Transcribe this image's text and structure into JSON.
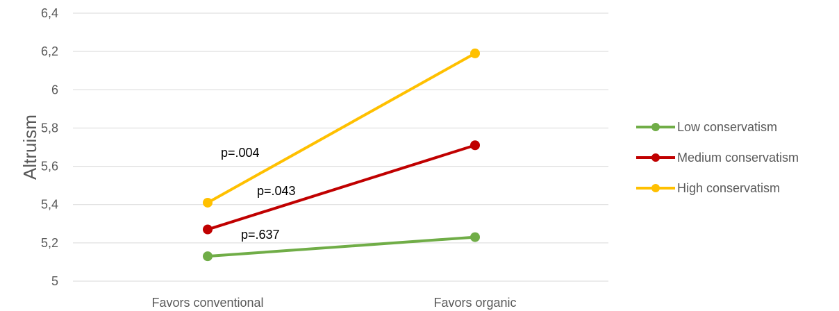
{
  "chart_data": {
    "type": "line",
    "ylabel": "Altruism",
    "xlabel": "",
    "categories": [
      "Favors conventional",
      "Favors organic"
    ],
    "ylim": [
      5,
      6.4
    ],
    "y_ticks": [
      "5",
      "5,2",
      "5,4",
      "5,6",
      "5,8",
      "6",
      "6,2",
      "6,4"
    ],
    "y_tick_values": [
      5,
      5.2,
      5.4,
      5.6,
      5.8,
      6,
      6.2,
      6.4
    ],
    "grid": true,
    "legend_position": "right",
    "series": [
      {
        "name": "Low conservatism",
        "color": "#70ad47",
        "values": [
          5.13,
          5.23
        ],
        "annotation": "p=.637"
      },
      {
        "name": "Medium conservatism",
        "color": "#c00000",
        "values": [
          5.27,
          5.71
        ],
        "annotation": "p=.043"
      },
      {
        "name": "High conservatism",
        "color": "#ffc000",
        "values": [
          5.41,
          6.19
        ],
        "annotation": "p=.004"
      }
    ]
  }
}
